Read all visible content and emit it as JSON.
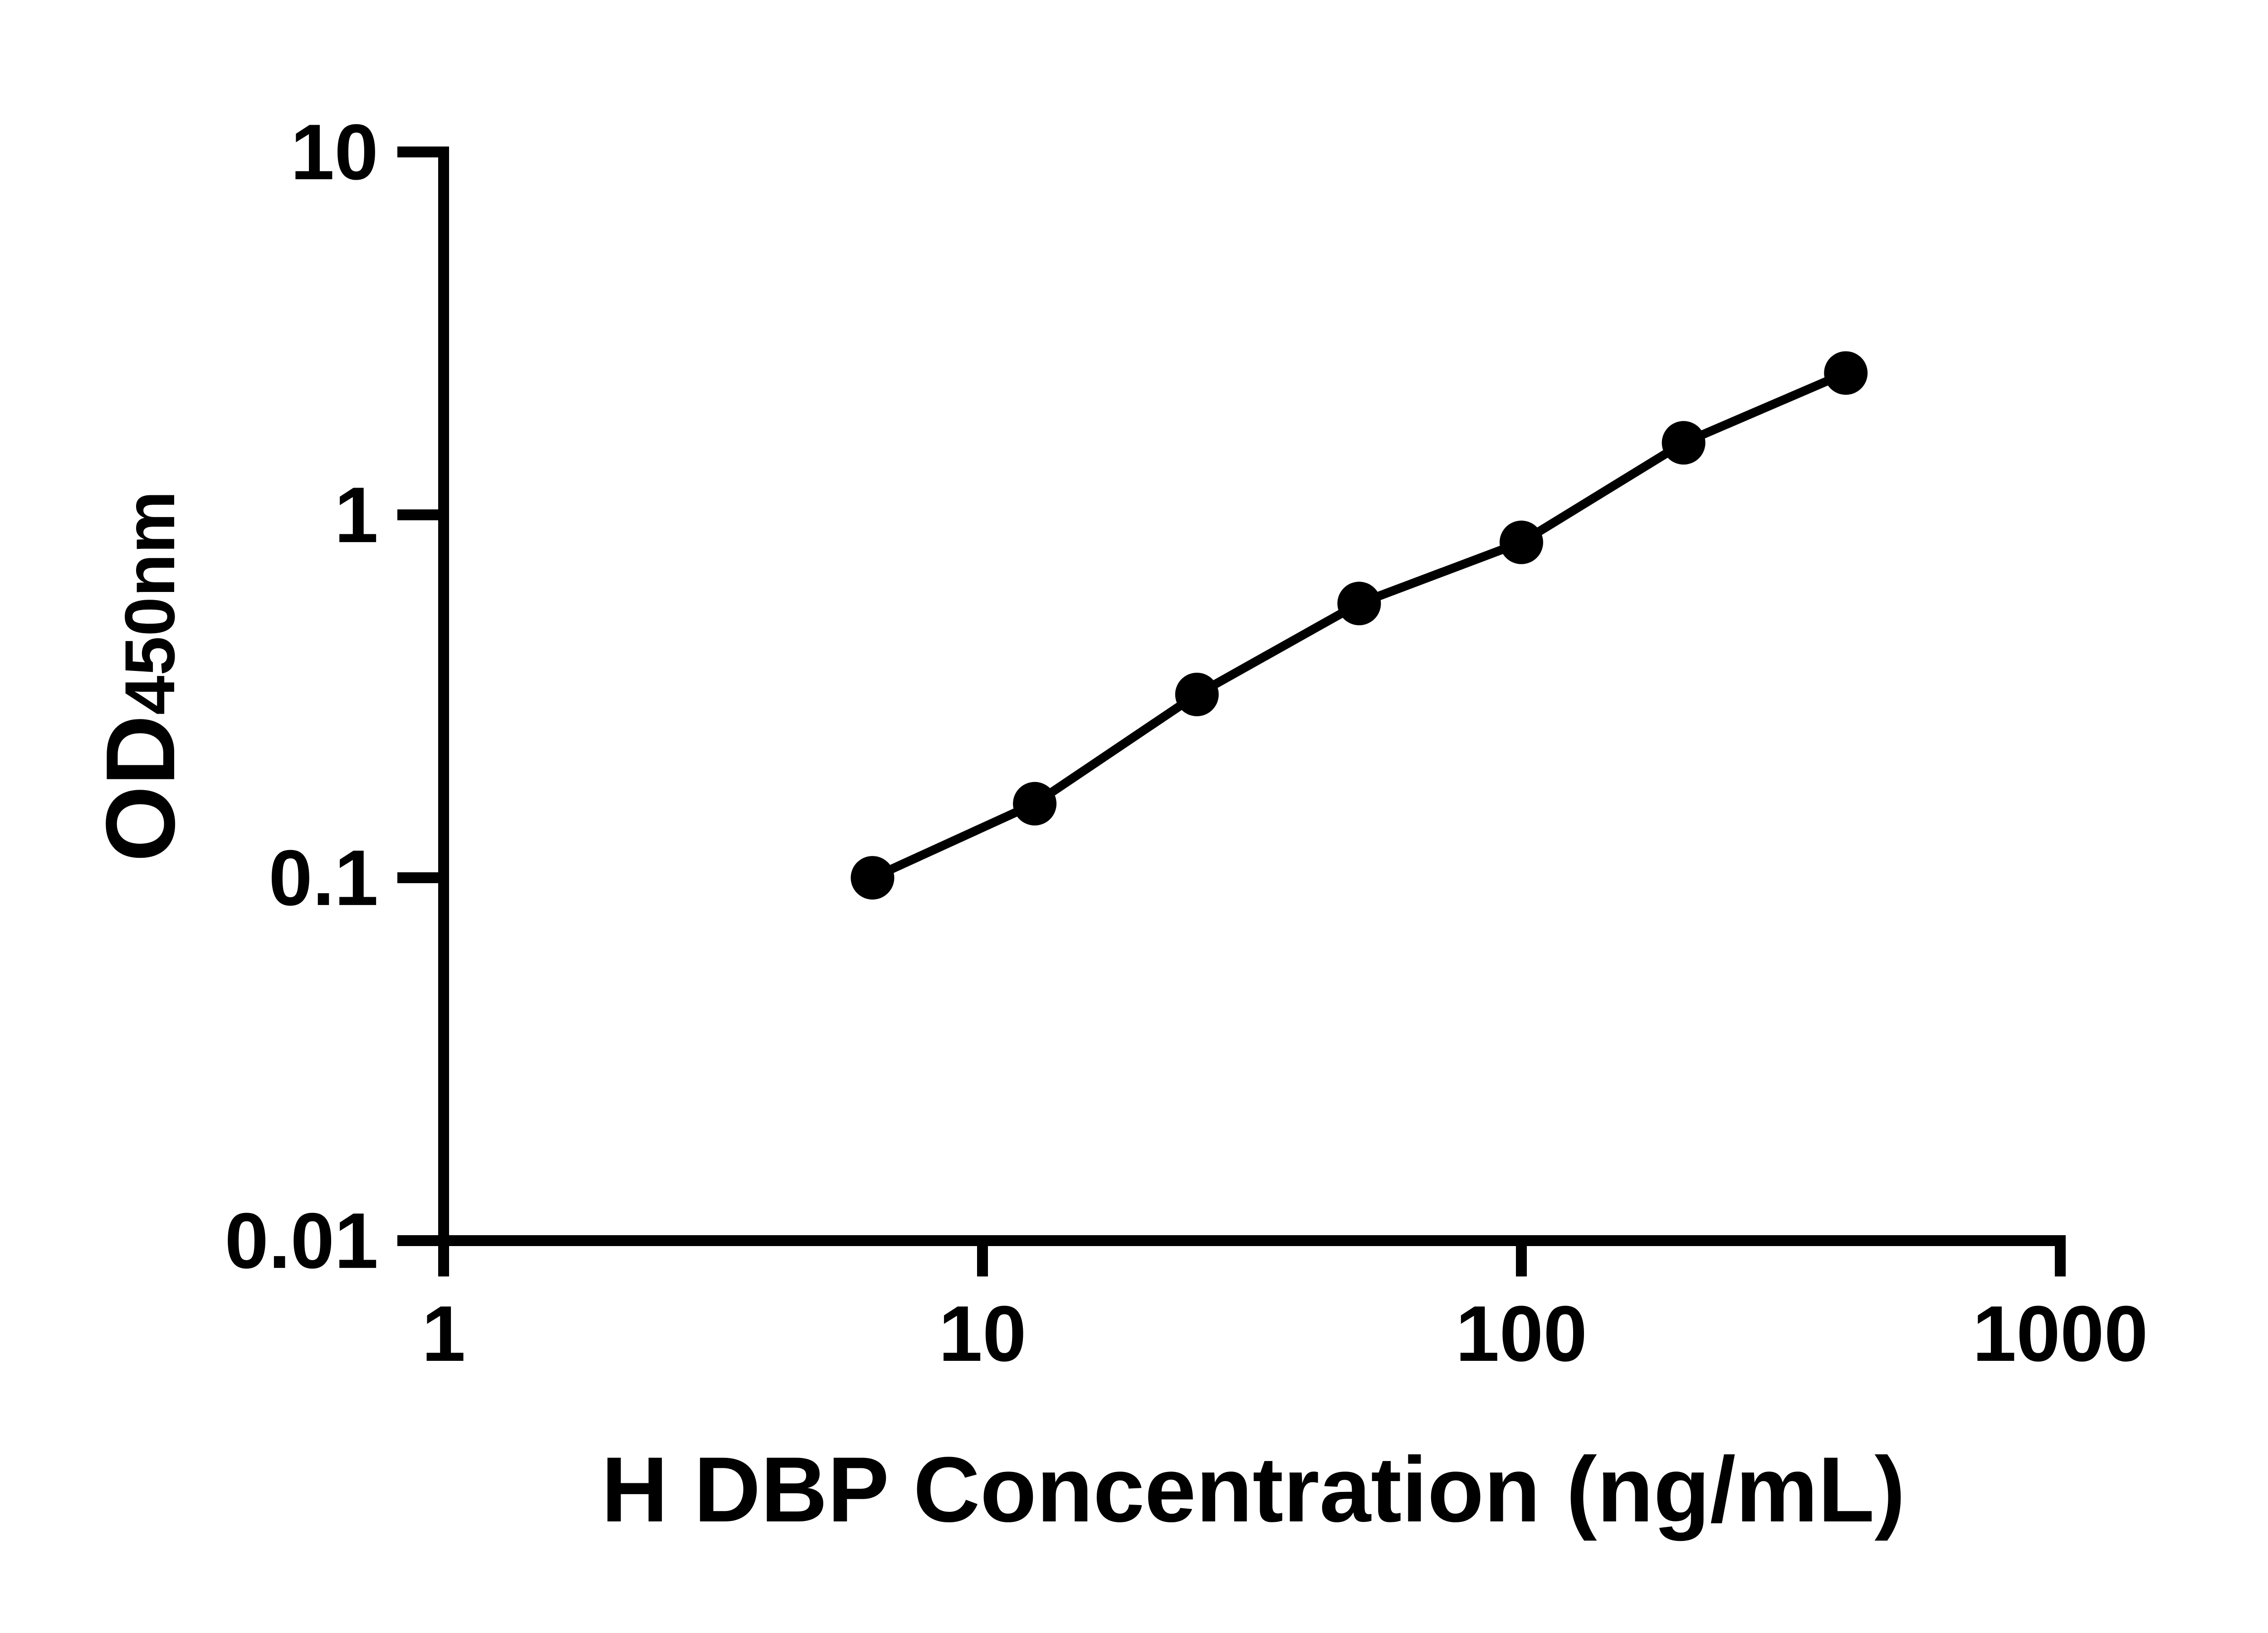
{
  "chart_data": {
    "type": "scatter",
    "subtype": "log-log standard curve with connecting line",
    "title": "",
    "xlabel": "H DBP Concentration (ng/mL)",
    "ylabel_main": "OD",
    "ylabel_sub": "450nm",
    "x_scale": "log",
    "y_scale": "log",
    "xlim": [
      1,
      1000
    ],
    "ylim": [
      0.01,
      10
    ],
    "grid": false,
    "legend": "none",
    "x_tick_values": [
      1,
      10,
      100,
      1000
    ],
    "x_tick_labels": [
      "1",
      "10",
      "100",
      "1000"
    ],
    "y_tick_values": [
      10,
      1,
      0.1,
      0.01
    ],
    "y_tick_labels": [
      "10",
      "1",
      "0.1",
      "0.01"
    ],
    "x": [
      6.25,
      12.5,
      25,
      50,
      100,
      200,
      400
    ],
    "y": [
      0.1,
      0.16,
      0.32,
      0.57,
      0.84,
      1.58,
      2.46
    ],
    "marker_color": "#000000",
    "line_color": "#000000",
    "background_color": "#ffffff"
  }
}
